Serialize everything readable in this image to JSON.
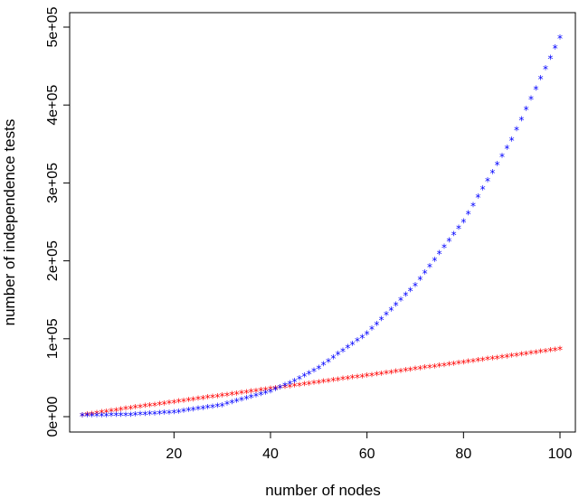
{
  "chart_data": {
    "type": "scatter",
    "title": "",
    "xlabel": "number of nodes",
    "ylabel": "number of independence tests",
    "xlim": [
      1,
      100
    ],
    "ylim": [
      0,
      500000
    ],
    "xticks": [
      20,
      40,
      60,
      80,
      100
    ],
    "xtick_labels": [
      "20",
      "40",
      "60",
      "80",
      "100"
    ],
    "yticks": [
      0,
      100000,
      200000,
      300000,
      400000,
      500000
    ],
    "ytick_labels": [
      "0e+00",
      "1e+05",
      "2e+05",
      "3e+05",
      "4e+05",
      "5e+05"
    ],
    "marker": "*",
    "grid": false,
    "legend": "none",
    "series": [
      {
        "color": "#ff0000",
        "x": [
          1,
          10,
          20,
          30,
          40,
          50,
          60,
          70,
          80,
          90,
          100
        ],
        "y": [
          0,
          8500,
          17000,
          25500,
          34000,
          42500,
          51000,
          59500,
          68000,
          76500,
          85000
        ]
      },
      {
        "color": "#0000ff",
        "x": [
          1,
          10,
          20,
          30,
          40,
          45,
          50,
          60,
          70,
          80,
          90,
          100
        ],
        "y": [
          0,
          500,
          4000,
          13000,
          31000,
          44000,
          61000,
          105000,
          167000,
          249000,
          354000,
          485000
        ]
      }
    ]
  }
}
